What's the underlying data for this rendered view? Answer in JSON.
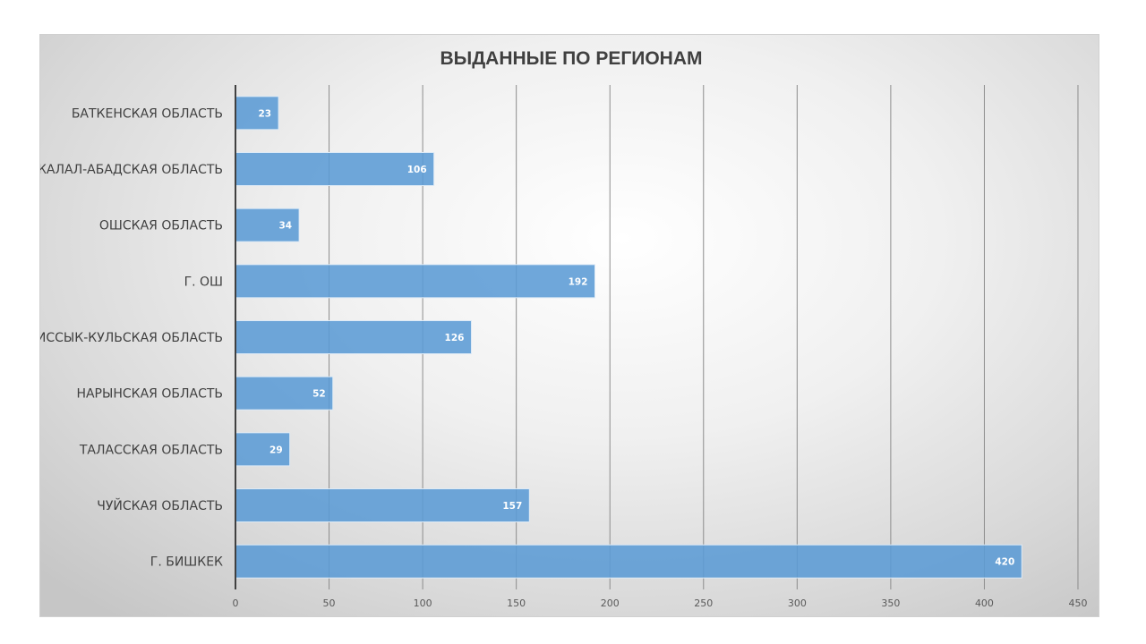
{
  "chart_data": {
    "type": "bar",
    "orientation": "horizontal",
    "title": "ВЫДАННЫЕ ПО РЕГИОНАМ",
    "categories": [
      "БАТКЕНСКАЯ ОБЛАСТЬ",
      "ЖАЛАЛ-АБАДСКАЯ ОБЛАСТЬ",
      "ОШСКАЯ ОБЛАСТЬ",
      "Г. ОШ",
      "ИССЫК-КУЛЬСКАЯ ОБЛАСТЬ",
      "НАРЫНСКАЯ ОБЛАСТЬ",
      "ТАЛАССКАЯ ОБЛАСТЬ",
      "ЧУЙСКАЯ ОБЛАСТЬ",
      "Г. БИШКЕК"
    ],
    "values": [
      23,
      106,
      34,
      192,
      126,
      52,
      29,
      157,
      420
    ],
    "xlim": [
      0,
      450
    ],
    "xticks": [
      "0",
      "50",
      "100",
      "150",
      "200",
      "250",
      "300",
      "350",
      "400",
      "450"
    ],
    "grid": true,
    "data_labels": true,
    "bar_color": "#5b9bd5",
    "xlabel": "",
    "ylabel": ""
  }
}
